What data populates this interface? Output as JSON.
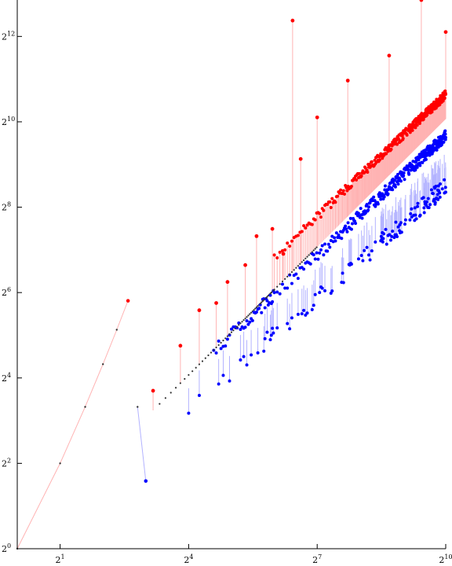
{
  "chart_data": {
    "type": "scatter",
    "title": "",
    "xlabel": "",
    "ylabel": "",
    "xscale": "log2",
    "yscale": "log2",
    "xlim": [
      1,
      1024
    ],
    "ylim": [
      1,
      7400
    ],
    "grid": false,
    "legend": "none",
    "x_ticks": [
      {
        "base": "2",
        "exp": "1",
        "value": 2
      },
      {
        "base": "2",
        "exp": "4",
        "value": 16
      },
      {
        "base": "2",
        "exp": "7",
        "value": 128
      },
      {
        "base": "2",
        "exp": "10",
        "value": 1024
      }
    ],
    "y_ticks": [
      {
        "base": "2",
        "exp": "0",
        "value": 1
      },
      {
        "base": "2",
        "exp": "2",
        "value": 4
      },
      {
        "base": "2",
        "exp": "4",
        "value": 16
      },
      {
        "base": "2",
        "exp": "6",
        "value": 64
      },
      {
        "base": "2",
        "exp": "8",
        "value": 256
      },
      {
        "base": "2",
        "exp": "10",
        "value": 1024
      },
      {
        "base": "2",
        "exp": "12",
        "value": 4096
      }
    ],
    "colors": {
      "red": "#ff0000",
      "blue": "#0000ff",
      "dark": "#333333",
      "red_line": "#ffb3b3",
      "blue_line": "#b3b3ff",
      "axis": "#000000"
    },
    "main_curve": {
      "x": [
        1,
        2,
        3,
        4,
        5,
        6
      ],
      "y": [
        1,
        4,
        10,
        20,
        35,
        56
      ]
    },
    "low_branch": {
      "x": [
        7,
        8
      ],
      "y": [
        10,
        3
      ]
    },
    "red_markers": [
      {
        "x": 9,
        "y": 13
      },
      {
        "x": 14,
        "y": 27
      },
      {
        "x": 19,
        "y": 48
      },
      {
        "x": 25,
        "y": 54
      },
      {
        "x": 30,
        "y": 76
      },
      {
        "x": 40,
        "y": 100
      },
      {
        "x": 48,
        "y": 160
      },
      {
        "x": 62,
        "y": 180
      },
      {
        "x": 74,
        "y": 120
      },
      {
        "x": 86,
        "y": 5300
      },
      {
        "x": 98,
        "y": 560
      },
      {
        "x": 128,
        "y": 1100
      },
      {
        "x": 210,
        "y": 2000
      },
      {
        "x": 410,
        "y": 3000
      },
      {
        "x": 690,
        "y": 7400
      },
      {
        "x": 1024,
        "y": 4400
      }
    ],
    "red_band": {
      "x_from": 64,
      "x_to": 1024,
      "coef": 2.2,
      "power": 0.95
    },
    "blue_band": {
      "x_from": 24,
      "x_to": 1024,
      "coef": 1.3,
      "power": 0.93
    },
    "blue_low": {
      "x_from": 16,
      "x_to": 1024,
      "coef": 1.0,
      "power": 0.87
    }
  }
}
